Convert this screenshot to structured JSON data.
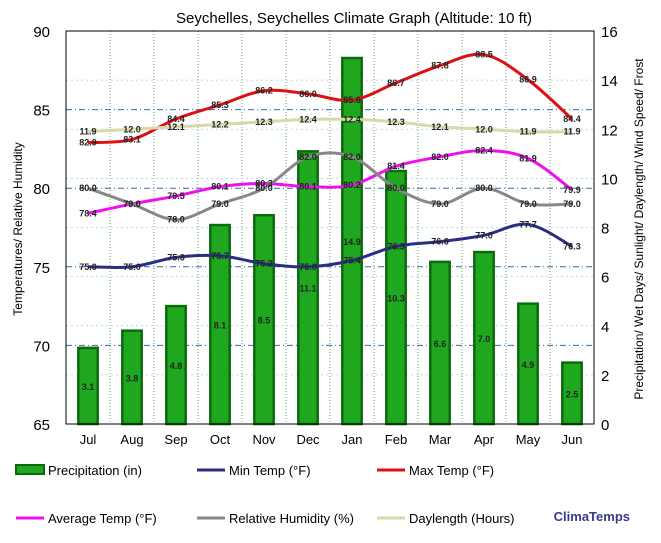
{
  "chart_data": {
    "type": "bar+line",
    "title": "Seychelles, Seychelles Climate Graph (Altitude: 10 ft)",
    "ylabel_left": "Temperatures/ Relative Humidity",
    "ylabel_right": "Precipitation/ Wet Days/ Sunlight/ Daylength/ Wind Speed/ Frost",
    "categories": [
      "Jul",
      "Aug",
      "Sep",
      "Oct",
      "Nov",
      "Dec",
      "Jan",
      "Feb",
      "Mar",
      "Apr",
      "May",
      "Jun"
    ],
    "ylim_left": [
      65,
      90
    ],
    "ylim_right": [
      0,
      16
    ],
    "yticks_left": [
      "65",
      "70",
      "75",
      "80",
      "85",
      "90"
    ],
    "yticks_right": [
      "0",
      "2",
      "4",
      "6",
      "8",
      "10",
      "12",
      "14",
      "16"
    ],
    "series": [
      {
        "name": "Precipitation (in)",
        "type": "bar",
        "axis": "right",
        "color": "#1fa81f",
        "values": [
          3.1,
          3.8,
          4.8,
          8.1,
          8.5,
          11.1,
          14.9,
          10.3,
          6.6,
          7.0,
          4.9,
          2.5
        ],
        "labels": [
          "3.1",
          "3.8",
          "4.8",
          "8.1",
          "8.5",
          "11.1",
          "14.9",
          "10.3",
          "6.6",
          "7.0",
          "4.9",
          "2.5"
        ]
      },
      {
        "name": "Min Temp (°F)",
        "type": "line",
        "axis": "left",
        "color": "#2b2e83",
        "values": [
          75.0,
          75.0,
          75.6,
          75.7,
          75.2,
          75.0,
          75.4,
          76.3,
          76.6,
          77.0,
          77.7,
          76.3
        ],
        "labels": [
          "75.0",
          "75.0",
          "75.6",
          "75.7",
          "75.2",
          "75.0",
          "75.4",
          "76.3",
          "76.6",
          "77.0",
          "77.7",
          "76.3"
        ]
      },
      {
        "name": "Max Temp (°F)",
        "type": "line",
        "axis": "left",
        "color": "#dd1111",
        "values": [
          82.9,
          83.1,
          84.4,
          85.3,
          86.2,
          86.0,
          85.6,
          86.7,
          87.8,
          88.5,
          86.9,
          84.4
        ],
        "labels": [
          "82.9",
          "83.1",
          "84.4",
          "85.3",
          "86.2",
          "86.0",
          "85.6",
          "86.7",
          "87.8",
          "88.5",
          "86.9",
          "84.4"
        ]
      },
      {
        "name": "Average Temp (°F)",
        "type": "line",
        "axis": "left",
        "color": "#ee11ee",
        "values": [
          78.4,
          79.0,
          79.5,
          80.1,
          80.3,
          80.1,
          80.2,
          81.4,
          82.0,
          82.4,
          81.9,
          79.9
        ],
        "labels": [
          "78.4",
          "79.0",
          "79.5",
          "80.1",
          "80.3",
          "80.1",
          "80.2",
          "81.4",
          "82.0",
          "82.4",
          "81.9",
          "79.9"
        ]
      },
      {
        "name": "Relative Humidity (%)",
        "type": "line",
        "axis": "left",
        "color": "#888888",
        "values": [
          80.0,
          79.0,
          78.0,
          79.0,
          80.0,
          82.0,
          82.0,
          80.0,
          79.0,
          80.0,
          79.0,
          79.0
        ],
        "labels": [
          "80.0",
          "79.0",
          "78.0",
          "79.0",
          "80.0",
          "82.0",
          "82.0",
          "80.0",
          "79.0",
          "80.0",
          "79.0",
          "79.0"
        ]
      },
      {
        "name": "Daylength (Hours)",
        "type": "line",
        "axis": "right",
        "color": "#d8d8a8",
        "values": [
          11.9,
          12.0,
          12.1,
          12.2,
          12.3,
          12.4,
          12.4,
          12.3,
          12.1,
          12.0,
          11.9,
          11.9
        ],
        "labels": [
          "11.9",
          "12.0",
          "12.1",
          "12.2",
          "12.3",
          "12.4",
          "12.4",
          "12.3",
          "12.1",
          "12.0",
          "11.9",
          "11.9"
        ]
      }
    ],
    "legend": [
      "Precipitation (in)",
      "Min Temp (°F)",
      "Max Temp (°F)",
      "Average Temp (°F)",
      "Relative Humidity (%)",
      "Daylength (Hours)"
    ],
    "grid": true,
    "legend_placement": "bottom"
  },
  "brand": "ClimaTemps"
}
